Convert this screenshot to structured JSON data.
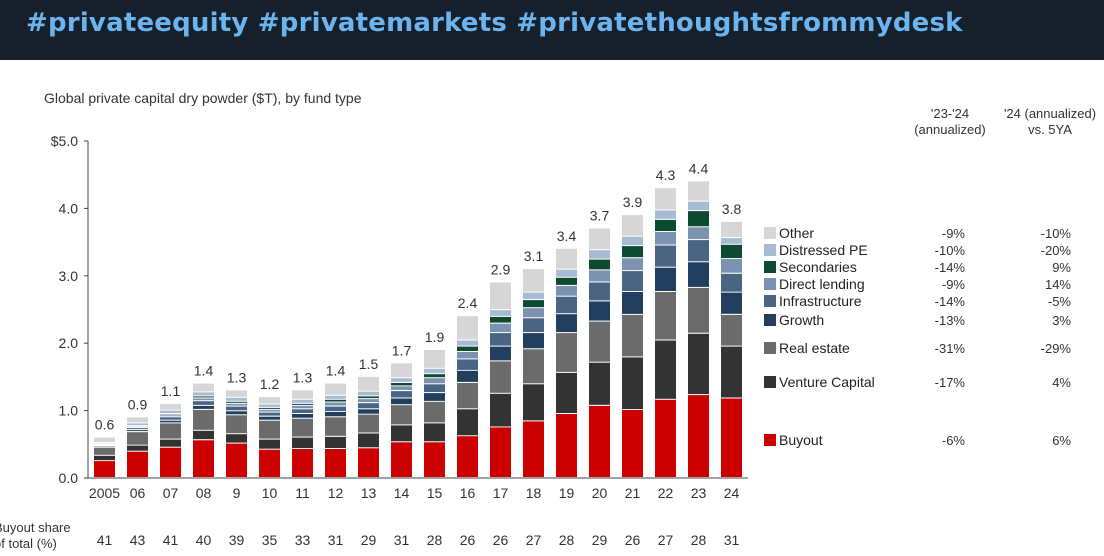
{
  "header": {
    "hashtags": "#privateequity #privatemarkets #privatethoughtsfrommydesk"
  },
  "colors": {
    "header_bg": "#15202b",
    "header_text": "#6cb4f0",
    "Buyout": "#cc0000",
    "Venture Capital": "#333333",
    "Real estate": "#6b6b6b",
    "Growth": "#223f5f",
    "Infrastructure": "#4a6584",
    "Direct lending": "#7b93b0",
    "Secondaries": "#0d4a32",
    "Distressed PE": "#a7bcd4",
    "Other": "#d6d6d6"
  },
  "chart_data": {
    "type": "bar",
    "stacked": true,
    "title": "Global private capital dry powder ($T), by fund type",
    "categories": [
      "2005",
      "06",
      "07",
      "08",
      "9",
      "10",
      "11",
      "12",
      "13",
      "14",
      "15",
      "16",
      "17",
      "18",
      "19",
      "20",
      "21",
      "22",
      "23",
      "24"
    ],
    "y_tick_labels": [
      "$5.0",
      "4.0",
      "3.0",
      "2.0",
      "1.0",
      "0.0"
    ],
    "ylim": [
      0,
      5
    ],
    "totals": [
      "0.6",
      "0.9",
      "1.1",
      "1.4",
      "1.3",
      "1.2",
      "1.3",
      "1.4",
      "1.5",
      "1.7",
      "1.9",
      "2.4",
      "2.9",
      "3.1",
      "3.4",
      "3.7",
      "3.9",
      "4.3",
      "4.4",
      "3.8"
    ],
    "series": [
      {
        "name": "Buyout",
        "values": [
          0.25,
          0.39,
          0.45,
          0.56,
          0.51,
          0.42,
          0.43,
          0.43,
          0.44,
          0.53,
          0.53,
          0.62,
          0.75,
          0.84,
          0.95,
          1.07,
          1.01,
          1.16,
          1.23,
          1.18
        ]
      },
      {
        "name": "Venture Capital",
        "values": [
          0.08,
          0.09,
          0.12,
          0.14,
          0.14,
          0.15,
          0.17,
          0.18,
          0.22,
          0.25,
          0.28,
          0.4,
          0.5,
          0.55,
          0.61,
          0.64,
          0.78,
          0.88,
          0.91,
          0.77
        ]
      },
      {
        "name": "Real estate",
        "values": [
          0.12,
          0.2,
          0.24,
          0.31,
          0.28,
          0.28,
          0.28,
          0.29,
          0.28,
          0.3,
          0.32,
          0.39,
          0.48,
          0.52,
          0.59,
          0.61,
          0.63,
          0.72,
          0.68,
          0.47
        ]
      },
      {
        "name": "Growth",
        "values": [
          0.02,
          0.03,
          0.04,
          0.06,
          0.06,
          0.06,
          0.07,
          0.08,
          0.08,
          0.1,
          0.13,
          0.18,
          0.22,
          0.24,
          0.28,
          0.3,
          0.34,
          0.36,
          0.38,
          0.33
        ]
      },
      {
        "name": "Infrastructure",
        "values": [
          0.01,
          0.03,
          0.05,
          0.07,
          0.07,
          0.06,
          0.07,
          0.08,
          0.09,
          0.11,
          0.13,
          0.17,
          0.2,
          0.22,
          0.26,
          0.28,
          0.31,
          0.33,
          0.33,
          0.28
        ]
      },
      {
        "name": "Direct lending",
        "values": [
          0.01,
          0.02,
          0.03,
          0.04,
          0.04,
          0.04,
          0.05,
          0.06,
          0.06,
          0.07,
          0.09,
          0.11,
          0.14,
          0.15,
          0.16,
          0.18,
          0.19,
          0.2,
          0.19,
          0.22
        ]
      },
      {
        "name": "Secondaries",
        "values": [
          0.01,
          0.01,
          0.02,
          0.03,
          0.03,
          0.03,
          0.03,
          0.04,
          0.04,
          0.05,
          0.06,
          0.08,
          0.1,
          0.12,
          0.12,
          0.16,
          0.18,
          0.18,
          0.24,
          0.21
        ]
      },
      {
        "name": "Distressed PE",
        "values": [
          0.02,
          0.04,
          0.05,
          0.06,
          0.06,
          0.05,
          0.06,
          0.06,
          0.07,
          0.07,
          0.08,
          0.09,
          0.1,
          0.11,
          0.12,
          0.14,
          0.14,
          0.14,
          0.14,
          0.1
        ]
      },
      {
        "name": "Other",
        "values": [
          0.08,
          0.09,
          0.1,
          0.13,
          0.11,
          0.11,
          0.14,
          0.18,
          0.22,
          0.22,
          0.28,
          0.36,
          0.41,
          0.35,
          0.31,
          0.32,
          0.32,
          0.33,
          0.3,
          0.24
        ]
      }
    ],
    "change_headers": [
      "'23-'24\n(annualized)",
      "'24 (annualized)\nvs. 5YA"
    ],
    "legend": [
      {
        "name": "Other",
        "chg_23_24": "-9%",
        "vs_5ya": "-10%"
      },
      {
        "name": "Distressed PE",
        "chg_23_24": "-10%",
        "vs_5ya": "-20%"
      },
      {
        "name": "Secondaries",
        "chg_23_24": "-14%",
        "vs_5ya": "9%"
      },
      {
        "name": "Direct lending",
        "chg_23_24": "-9%",
        "vs_5ya": "14%"
      },
      {
        "name": "Infrastructure",
        "chg_23_24": "-14%",
        "vs_5ya": "-5%"
      },
      {
        "name": "Growth",
        "chg_23_24": "-13%",
        "vs_5ya": "3%"
      },
      {
        "name": "Real estate",
        "chg_23_24": "-31%",
        "vs_5ya": "-29%"
      },
      {
        "name": "Venture Capital",
        "chg_23_24": "-17%",
        "vs_5ya": "4%"
      },
      {
        "name": "Buyout",
        "chg_23_24": "-6%",
        "vs_5ya": "6%"
      }
    ],
    "buyout_share_label": "Buyout share\nof total (%)",
    "buyout_share": [
      "41",
      "43",
      "41",
      "40",
      "39",
      "35",
      "33",
      "31",
      "29",
      "31",
      "28",
      "26",
      "26",
      "27",
      "28",
      "29",
      "26",
      "27",
      "28",
      "31"
    ]
  }
}
